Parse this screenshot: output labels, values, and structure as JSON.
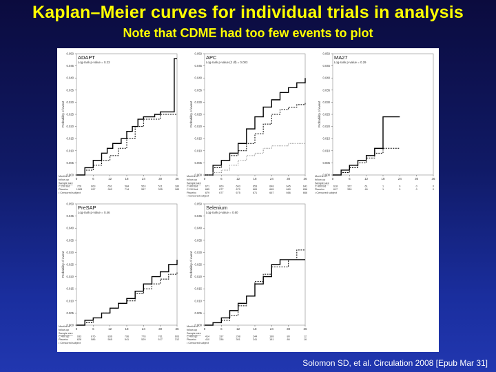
{
  "header": {
    "title": "Kaplan–Meier curves for individual trials in analysis",
    "subtitle": "Note that CDME had too few events to plot"
  },
  "footer": {
    "citation": "Solomon SD, et al. Circulation 2008 [Epub Mar 31]"
  },
  "common": {
    "yticks": [
      "0.050",
      "0.045",
      "0.040",
      "0.035",
      "0.030",
      "0.025",
      "0.020",
      "0.015",
      "0.010",
      "0.005",
      "0.000"
    ],
    "ylabel": "Probability of event",
    "xticks": [
      0,
      6,
      12,
      18,
      24,
      30,
      36
    ],
    "months_label": "Months of follow-up",
    "sample_size_label": "Sample size",
    "censored_label": "• Censored subject"
  },
  "colors": {
    "curve_primary": "#000000",
    "curve_secondary": "#777777",
    "frame": "#888888"
  },
  "chart_data": [
    {
      "type": "line",
      "trial": "ADAPT",
      "pvalue_text": "Log-rank p-value = 0.23",
      "xlim": [
        0,
        36
      ],
      "ylim": [
        0,
        0.05
      ],
      "series": [
        {
          "name": "C 200 bid",
          "x": [
            0,
            3,
            6,
            9,
            11,
            13,
            16,
            18,
            20,
            22,
            24,
            28,
            30,
            33,
            35,
            36
          ],
          "y": [
            0,
            0.003,
            0.006,
            0.009,
            0.011,
            0.013,
            0.015,
            0.018,
            0.02,
            0.023,
            0.024,
            0.025,
            0.026,
            0.026,
            0.048,
            0.048
          ]
        },
        {
          "name": "Placebo",
          "x": [
            0,
            3,
            6,
            9,
            12,
            15,
            18,
            21,
            24,
            30,
            36
          ],
          "y": [
            0,
            0.002,
            0.004,
            0.006,
            0.008,
            0.011,
            0.015,
            0.02,
            0.023,
            0.025,
            0.025
          ]
        }
      ],
      "table": {
        "rows": [
          {
            "label": "C 200 bid",
            "values": [
              "726",
              "663",
              "651",
              "584",
              "563",
              "511",
              "180"
            ]
          },
          {
            "label": "Placebo",
            "values": [
              "1083",
              "997",
              "962",
              "714",
              "557",
              "335",
              "183"
            ]
          }
        ]
      }
    },
    {
      "type": "line",
      "trial": "APC",
      "pvalue_text": "Log-rank p-value (2 df) = 0.003",
      "xlim": [
        0,
        36
      ],
      "ylim": [
        0,
        0.05
      ],
      "series": [
        {
          "name": "C 400 bid",
          "x": [
            0,
            3,
            6,
            9,
            12,
            15,
            18,
            21,
            24,
            27,
            30,
            33,
            36
          ],
          "y": [
            0,
            0.004,
            0.006,
            0.009,
            0.013,
            0.019,
            0.024,
            0.028,
            0.031,
            0.034,
            0.036,
            0.038,
            0.04
          ]
        },
        {
          "name": "C 200 bid",
          "x": [
            0,
            3,
            6,
            9,
            12,
            15,
            18,
            21,
            24,
            27,
            30,
            33,
            36
          ],
          "y": [
            0,
            0.003,
            0.006,
            0.008,
            0.01,
            0.013,
            0.017,
            0.021,
            0.025,
            0.027,
            0.028,
            0.029,
            0.03
          ]
        },
        {
          "name": "Placebo",
          "x": [
            0,
            3,
            6,
            9,
            12,
            15,
            18,
            21,
            24,
            27,
            30,
            33,
            36
          ],
          "y": [
            0,
            0.001,
            0.002,
            0.004,
            0.006,
            0.008,
            0.009,
            0.011,
            0.012,
            0.012,
            0.013,
            0.013,
            0.013
          ]
        }
      ],
      "table": {
        "rows": [
          {
            "label": "C 400 bid",
            "values": [
              "671",
              "660",
              "663",
              "653",
              "648",
              "645",
              "641"
            ]
          },
          {
            "label": "C 200 bid",
            "values": [
              "685",
              "677",
              "670",
              "669",
              "665",
              "660",
              "656"
            ]
          },
          {
            "label": "Placebo",
            "values": [
              "679",
              "677",
              "675",
              "671",
              "667",
              "666",
              "666"
            ]
          }
        ]
      }
    },
    {
      "type": "line",
      "trial": "MA27",
      "pvalue_text": "Log-rank p-value = 0.29",
      "xlim": [
        0,
        36
      ],
      "ylim": [
        0,
        0.05
      ],
      "series": [
        {
          "name": "C 400 bid",
          "x": [
            0,
            3,
            6,
            9,
            12,
            15,
            18,
            21,
            24
          ],
          "y": [
            0,
            0.002,
            0.004,
            0.006,
            0.008,
            0.011,
            0.024,
            0.024,
            0.024
          ]
        },
        {
          "name": "Placebo",
          "x": [
            0,
            3,
            6,
            9,
            12,
            15,
            18,
            21,
            24
          ],
          "y": [
            0,
            0.001,
            0.003,
            0.005,
            0.007,
            0.009,
            0.011,
            0.011,
            0.011
          ]
        }
      ],
      "table": {
        "rows": [
          {
            "label": "C 400 bid",
            "values": [
              "618",
              "322",
              "61",
              "1",
              "0",
              "0",
              "0"
            ]
          },
          {
            "label": "Placebo",
            "values": [
              "617",
              "330",
              "46",
              "1",
              "0",
              "0",
              "0"
            ]
          }
        ]
      }
    },
    {
      "type": "line",
      "trial": "PreSAP",
      "pvalue_text": "Log-rank p-value = 0.46",
      "xlim": [
        0,
        36
      ],
      "ylim": [
        0,
        0.05
      ],
      "series": [
        {
          "name": "C 400 qd",
          "x": [
            0,
            3,
            6,
            9,
            12,
            15,
            18,
            21,
            24,
            27,
            30,
            33,
            36
          ],
          "y": [
            0,
            0.002,
            0.003,
            0.005,
            0.007,
            0.009,
            0.011,
            0.014,
            0.017,
            0.02,
            0.022,
            0.025,
            0.027
          ]
        },
        {
          "name": "Placebo",
          "x": [
            0,
            3,
            6,
            9,
            12,
            15,
            18,
            21,
            24,
            27,
            30,
            33,
            36
          ],
          "y": [
            0,
            0.001,
            0.003,
            0.005,
            0.007,
            0.009,
            0.01,
            0.013,
            0.015,
            0.017,
            0.019,
            0.021,
            0.022
          ]
        }
      ],
      "table": {
        "rows": [
          {
            "label": "C 400 qd",
            "values": [
              "933",
              "876",
              "836",
              "796",
              "778",
              "761",
              "603"
            ]
          },
          {
            "label": "Placebo",
            "values": [
              "628",
              "586",
              "565",
              "541",
              "529",
              "517",
              "312"
            ]
          }
        ]
      }
    },
    {
      "type": "line",
      "trial": "Selenium",
      "pvalue_text": "Log-rank p-value = 0.60",
      "xlim": [
        0,
        36
      ],
      "ylim": [
        0,
        0.05
      ],
      "series": [
        {
          "name": "C 400 qd",
          "x": [
            0,
            3,
            6,
            9,
            12,
            15,
            18,
            21,
            24,
            27,
            30,
            33,
            36
          ],
          "y": [
            0,
            0.001,
            0.003,
            0.006,
            0.009,
            0.012,
            0.017,
            0.02,
            0.025,
            0.027,
            0.027,
            0.027,
            0.027
          ]
        },
        {
          "name": "Placebo",
          "x": [
            0,
            3,
            6,
            9,
            12,
            15,
            18,
            21,
            24,
            27,
            30,
            33,
            36
          ],
          "y": [
            0,
            0.001,
            0.002,
            0.004,
            0.008,
            0.012,
            0.018,
            0.021,
            0.024,
            0.024,
            0.027,
            0.031,
            0.031
          ]
        }
      ],
      "table": {
        "rows": [
          {
            "label": "C 400 qd",
            "values": [
              "414",
              "337",
              "298",
              "244",
              "188",
              "80",
              "12"
            ]
          },
          {
            "label": "Placebo",
            "values": [
              "410",
              "336",
              "301",
              "241",
              "181",
              "80",
              "16"
            ]
          }
        ]
      }
    }
  ]
}
